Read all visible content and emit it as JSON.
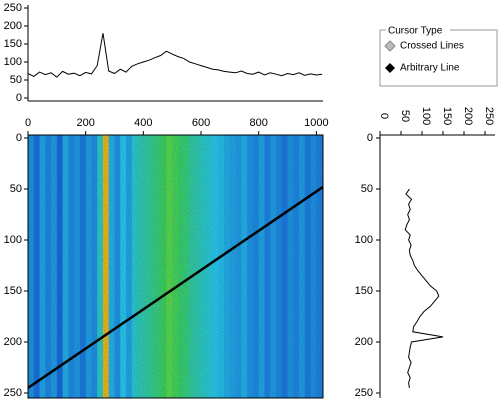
{
  "chart_data": [
    {
      "type": "line",
      "color": "#000000",
      "x": [
        0,
        20,
        40,
        60,
        80,
        100,
        120,
        140,
        160,
        180,
        200,
        220,
        240,
        260,
        280,
        300,
        320,
        340,
        360,
        380,
        400,
        420,
        440,
        460,
        480,
        500,
        520,
        540,
        560,
        580,
        600,
        620,
        640,
        660,
        680,
        700,
        720,
        740,
        760,
        780,
        800,
        820,
        840,
        860,
        880,
        900,
        920,
        940,
        960,
        980,
        1000,
        1020
      ],
      "values": [
        68,
        60,
        72,
        65,
        70,
        58,
        74,
        66,
        69,
        62,
        71,
        67,
        90,
        180,
        75,
        68,
        80,
        72,
        88,
        95,
        100,
        105,
        112,
        118,
        130,
        122,
        115,
        110,
        100,
        95,
        90,
        85,
        80,
        78,
        74,
        72,
        70,
        75,
        68,
        66,
        72,
        64,
        70,
        66,
        62,
        68,
        65,
        70,
        63,
        67,
        64,
        66
      ],
      "xlim": [
        0,
        1023
      ],
      "ylim": [
        0,
        250
      ],
      "yticks": [
        0,
        50,
        100,
        150,
        200,
        250
      ]
    },
    {
      "type": "heatmap",
      "xlim": [
        0,
        1023
      ],
      "ylim": [
        0,
        250
      ],
      "xticks": [
        0,
        200,
        400,
        600,
        800,
        1000
      ],
      "yticks": [
        0,
        50,
        100,
        150,
        200,
        250
      ],
      "cursor_line": {
        "x": [
          0,
          1023
        ],
        "y": [
          245,
          48
        ],
        "color": "#000000"
      }
    },
    {
      "type": "line",
      "orientation": "vertical",
      "color": "#000000",
      "y": [
        50,
        55,
        60,
        65,
        70,
        75,
        80,
        85,
        90,
        95,
        100,
        105,
        110,
        115,
        120,
        125,
        130,
        135,
        140,
        145,
        150,
        155,
        160,
        165,
        170,
        175,
        180,
        185,
        190,
        195,
        200,
        205,
        210,
        215,
        220,
        225,
        230,
        235,
        240,
        245
      ],
      "values": [
        70,
        62,
        75,
        68,
        72,
        66,
        70,
        64,
        60,
        72,
        68,
        74,
        70,
        72,
        78,
        82,
        90,
        100,
        110,
        120,
        135,
        140,
        130,
        120,
        105,
        95,
        88,
        80,
        78,
        150,
        75,
        72,
        70,
        68,
        74,
        70,
        66,
        72,
        68,
        70
      ],
      "xlim": [
        0,
        250
      ],
      "ylim": [
        0,
        250
      ],
      "xticks": [
        0,
        50,
        100,
        150,
        200,
        250
      ],
      "yticks": [
        0,
        50,
        100,
        150,
        200,
        250
      ]
    }
  ],
  "cursor_type": {
    "title": "Cursor Type",
    "options": [
      "Crossed Lines",
      "Arbitrary Line"
    ]
  }
}
